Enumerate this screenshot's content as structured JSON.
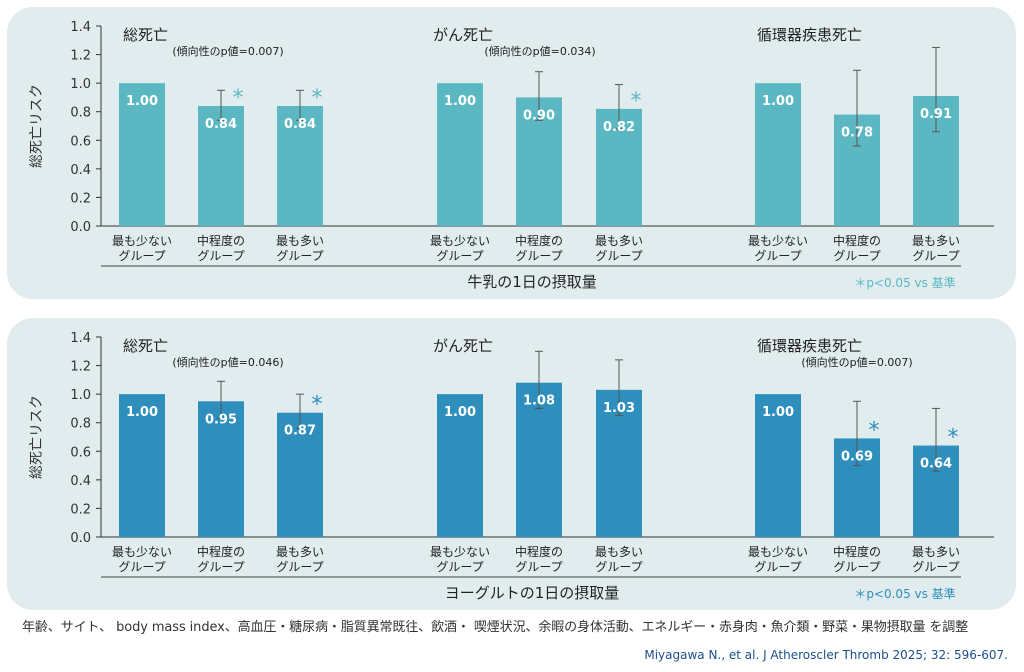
{
  "chart_data": [
    {
      "type": "bar",
      "ylabel": "総死亡リスク",
      "xlabel": "牛乳の1日の摂取量",
      "ylim": [
        0,
        1.4
      ],
      "yticks": [
        "0.0",
        "0.2",
        "0.4",
        "0.6",
        "0.8",
        "1.0",
        "1.2",
        "1.4"
      ],
      "color": "#5bb8c3",
      "significance_note": "＊p<0.05 vs 基準",
      "categories": [
        [
          "最も少ない",
          "グループ"
        ],
        [
          "中程度の",
          "グループ"
        ],
        [
          "最も多い",
          "グループ"
        ]
      ],
      "groups": [
        {
          "title": "総死亡",
          "trend_note": "(傾向性のp値=0.007)",
          "values": [
            1.0,
            0.84,
            0.84
          ],
          "value_labels": [
            "1.00",
            "0.84",
            "0.84"
          ],
          "ci": [
            null,
            [
              0.74,
              0.95
            ],
            [
              0.74,
              0.95
            ]
          ],
          "significant": [
            false,
            true,
            true
          ]
        },
        {
          "title": "がん死亡",
          "trend_note": "(傾向性のp値=0.034)",
          "values": [
            1.0,
            0.9,
            0.82
          ],
          "value_labels": [
            "1.00",
            "0.90",
            "0.82"
          ],
          "ci": [
            null,
            [
              0.74,
              1.08
            ],
            [
              0.68,
              0.99
            ]
          ],
          "significant": [
            false,
            false,
            true
          ]
        },
        {
          "title": "循環器疾患死亡",
          "trend_note": "",
          "values": [
            1.0,
            0.78,
            0.91
          ],
          "value_labels": [
            "1.00",
            "0.78",
            "0.91"
          ],
          "ci": [
            null,
            [
              0.56,
              1.09
            ],
            [
              0.66,
              1.25
            ]
          ],
          "significant": [
            false,
            false,
            false
          ]
        }
      ]
    },
    {
      "type": "bar",
      "ylabel": "総死亡リスク",
      "xlabel": "ヨーグルトの1日の摂取量",
      "ylim": [
        0,
        1.4
      ],
      "yticks": [
        "0.0",
        "0.2",
        "0.4",
        "0.6",
        "0.8",
        "1.0",
        "1.2",
        "1.4"
      ],
      "color": "#2e8fbd",
      "significance_note": "＊p<0.05 vs 基準",
      "categories": [
        [
          "最も少ない",
          "グループ"
        ],
        [
          "中程度の",
          "グループ"
        ],
        [
          "最も多い",
          "グループ"
        ]
      ],
      "groups": [
        {
          "title": "総死亡",
          "trend_note": "(傾向性のp値=0.046)",
          "values": [
            1.0,
            0.95,
            0.87
          ],
          "value_labels": [
            "1.00",
            "0.95",
            "0.87"
          ],
          "ci": [
            null,
            [
              0.83,
              1.09
            ],
            [
              0.76,
              1.0
            ]
          ],
          "significant": [
            false,
            false,
            true
          ]
        },
        {
          "title": "がん死亡",
          "trend_note": "",
          "values": [
            1.0,
            1.08,
            1.03
          ],
          "value_labels": [
            "1.00",
            "1.08",
            "1.03"
          ],
          "ci": [
            null,
            [
              0.9,
              1.3
            ],
            [
              0.85,
              1.24
            ]
          ],
          "significant": [
            false,
            false,
            false
          ]
        },
        {
          "title": "循環器疾患死亡",
          "trend_note": "(傾向性のp値=0.007)",
          "values": [
            1.0,
            0.69,
            0.64
          ],
          "value_labels": [
            "1.00",
            "0.69",
            "0.64"
          ],
          "ci": [
            null,
            [
              0.5,
              0.95
            ],
            [
              0.46,
              0.9
            ]
          ],
          "significant": [
            false,
            true,
            true
          ]
        }
      ]
    }
  ],
  "footnote": "年齢、サイト、 body mass index、高血圧・糖尿病・脂質異常既往、飲酒・ 喫煙状況、余暇の身体活動、エネルギー・赤身肉・魚介類・野菜・果物摂取量 を調整",
  "citation": "Miyagawa N., et al. J Atheroscler Thromb 2025; 32: 596-607."
}
